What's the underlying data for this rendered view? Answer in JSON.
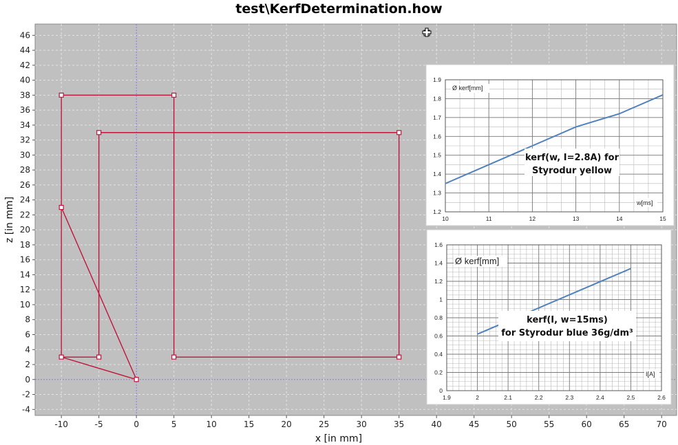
{
  "title": "test\\KerfDetermination.how",
  "chart_data": [
    {
      "type": "line",
      "xlabel": "x [in mm]",
      "ylabel": "z [in mm]",
      "xlim": [
        -13.5,
        72
      ],
      "ylim": [
        -4.8,
        47.5
      ],
      "grid": true,
      "x_ticks": [
        -10,
        -5,
        0,
        5,
        10,
        15,
        20,
        25,
        30,
        35,
        40,
        45,
        50,
        55,
        60,
        65,
        70
      ],
      "y_ticks": [
        -4,
        -2,
        0,
        2,
        4,
        6,
        8,
        10,
        12,
        14,
        16,
        18,
        20,
        22,
        24,
        26,
        28,
        30,
        32,
        34,
        36,
        38,
        40,
        42,
        44,
        46
      ],
      "series": [
        {
          "color": "#c0143c",
          "points": [
            [
              0,
              0
            ],
            [
              -10,
              3
            ],
            [
              -10,
              23
            ],
            [
              -10,
              38
            ],
            [
              5,
              38
            ],
            [
              5,
              3
            ],
            [
              35,
              3
            ],
            [
              35,
              33
            ],
            [
              -5,
              33
            ],
            [
              -5,
              3
            ],
            [
              -10,
              3
            ]
          ]
        },
        {
          "color": "#c0143c",
          "points": [
            [
              -10,
              23
            ],
            [
              0,
              0
            ]
          ]
        }
      ]
    },
    {
      "type": "line",
      "xlabel": "w[ms]",
      "ylabel": "Ø kerf[mm]",
      "annotation": [
        "kerf(w, I=2.8A) for",
        "Styrodur yellow"
      ],
      "xlim": [
        10,
        15
      ],
      "ylim": [
        1.2,
        1.9
      ],
      "x_ticks": [
        "10",
        "11",
        "12",
        "13",
        "14",
        "15"
      ],
      "y_ticks": [
        "1.2",
        "1.3",
        "1.4",
        "1.5",
        "1.6",
        "1.7",
        "1.8",
        "1.9"
      ],
      "grid": true,
      "series": [
        {
          "color": "#4f81bd",
          "x": [
            10,
            11,
            12,
            13,
            14,
            15
          ],
          "y": [
            1.35,
            1.45,
            1.55,
            1.65,
            1.72,
            1.82
          ]
        }
      ]
    },
    {
      "type": "line",
      "xlabel": "I[A]",
      "ylabel": "Ø kerf[mm]",
      "annotation": [
        "kerf(I, w=15ms)",
        "for Styrodur blue 36g/dm³"
      ],
      "xlim": [
        1.9,
        2.6
      ],
      "ylim": [
        0,
        1.6
      ],
      "x_ticks": [
        "1.9",
        "2",
        "2.1",
        "2.2",
        "2.3",
        "2.4",
        "2.5",
        "2.6"
      ],
      "y_ticks": [
        "0",
        "0.2",
        "0.4",
        "0.6",
        "0.8",
        "1",
        "1.2",
        "1.4",
        "1.6"
      ],
      "grid": true,
      "series": [
        {
          "color": "#4f81bd",
          "x": [
            2.0,
            2.5
          ],
          "y": [
            0.62,
            1.34
          ]
        }
      ]
    }
  ],
  "colors": {
    "plot_background": "#c0c0c0",
    "grid": "#e4e4e4",
    "zero_axis": "#7a7aff",
    "path": "#c0143c",
    "inset_line": "#4f81bd"
  }
}
